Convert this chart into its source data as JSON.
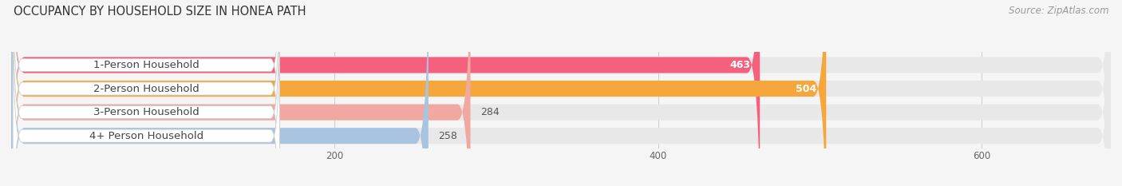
{
  "title": "OCCUPANCY BY HOUSEHOLD SIZE IN HONEA PATH",
  "source": "Source: ZipAtlas.com",
  "categories": [
    "1-Person Household",
    "2-Person Household",
    "3-Person Household",
    "4+ Person Household"
  ],
  "values": [
    463,
    504,
    284,
    258
  ],
  "bar_colors": [
    "#f4607e",
    "#f5a73c",
    "#f0a8a0",
    "#a8c4e0"
  ],
  "xlim": [
    0,
    680
  ],
  "xticks": [
    200,
    400,
    600
  ],
  "background_color": "#f5f5f5",
  "bar_background": "#e8e8e8",
  "title_fontsize": 10.5,
  "label_fontsize": 9.5,
  "value_fontsize": 9,
  "source_fontsize": 8.5
}
